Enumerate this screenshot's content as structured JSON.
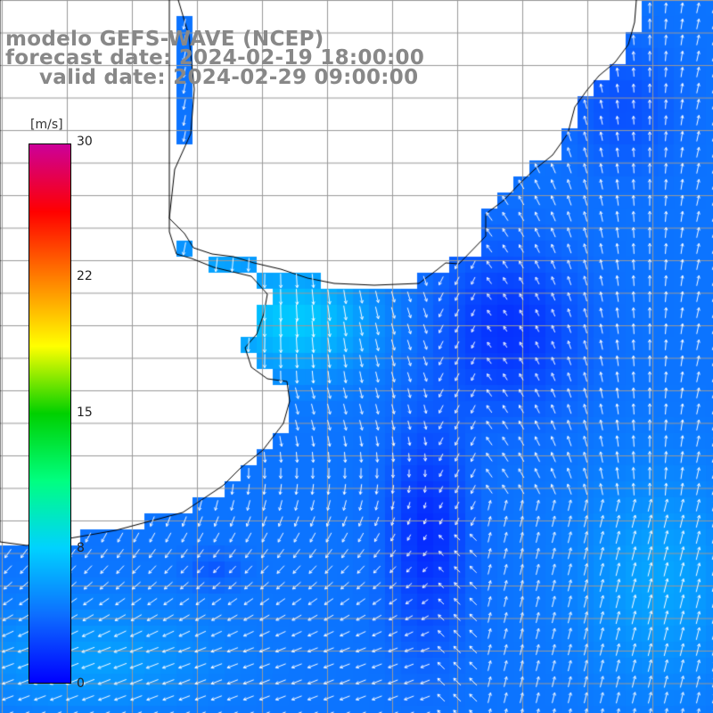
{
  "title": {
    "model": "modelo GEFS-WAVE (NCEP)",
    "forecast": "forecast date: 2024-02-19 18:00:00",
    "valid": "valid date: 2024-02-29 09:00:00"
  },
  "colorbar": {
    "units": "[m/s]",
    "ticks": [
      "30",
      "22",
      "15",
      "8",
      "0"
    ],
    "stops": [
      "#0000ff",
      "#0d6dff",
      "#00d2ff",
      "#00ff80",
      "#00d000",
      "#ffff00",
      "#ff8000",
      "#ff0000",
      "#cc0099"
    ],
    "range": [
      0,
      30
    ]
  },
  "colors": {
    "land": "#ffffff",
    "coast": "#000000",
    "grid": "#999999",
    "arrow": "#ffffff",
    "title": "#888888"
  },
  "chart_data": {
    "type": "heatmap",
    "variable": "wind speed and direction",
    "units": "m/s",
    "range": [
      0,
      30
    ],
    "grid": true
  }
}
